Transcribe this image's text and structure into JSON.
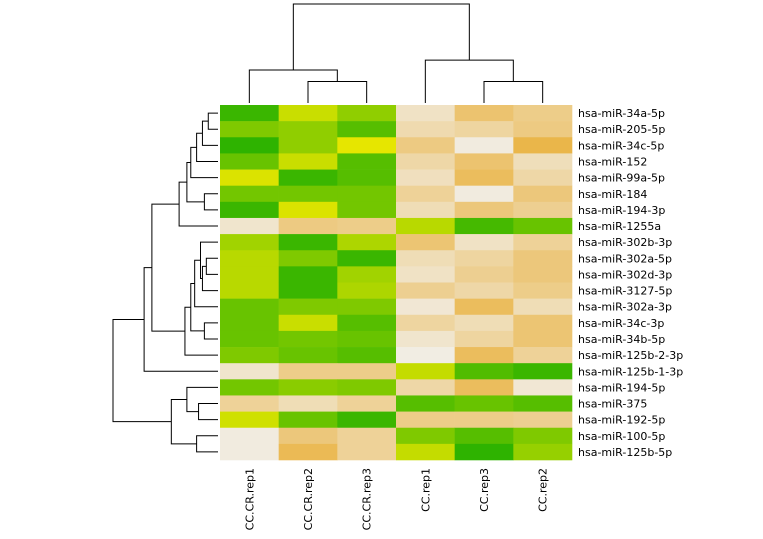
{
  "chart_data": {
    "type": "heatmap",
    "title": "",
    "columns": [
      "CC.CR.rep1",
      "CC.CR.rep2",
      "CC.CR.rep3",
      "CC.rep1",
      "CC.rep3",
      "CC.rep2"
    ],
    "rows": [
      "hsa-miR-34a-5p",
      "hsa-miR-205-5p",
      "hsa-miR-34c-5p",
      "hsa-miR-152",
      "hsa-miR-99a-5p",
      "hsa-miR-184",
      "hsa-miR-194-3p",
      "hsa-miR-1255a",
      "hsa-miR-302b-3p",
      "hsa-miR-302a-5p",
      "hsa-miR-302d-3p",
      "hsa-miR-3127-5p",
      "hsa-miR-302a-3p",
      "hsa-miR-34c-3p",
      "hsa-miR-34b-5p",
      "hsa-miR-125b-2-3p",
      "hsa-miR-125b-1-3p",
      "hsa-miR-194-5p",
      "hsa-miR-375",
      "hsa-miR-192-5p",
      "hsa-miR-100-5p",
      "hsa-miR-125b-5p"
    ],
    "color_scale": {
      "low": "#00a600",
      "mid": "#e6e600",
      "high_start": "#eab64a",
      "high": "#f2f2f2",
      "note": "terrain-like palette: green (low) - yellow - orange - near white (high); values are relative scale 0-100"
    },
    "values": [
      [
        10,
        35,
        25,
        88,
        65,
        72
      ],
      [
        22,
        25,
        15,
        82,
        78,
        70
      ],
      [
        8,
        25,
        40,
        70,
        95,
        55
      ],
      [
        18,
        35,
        15,
        80,
        65,
        85
      ],
      [
        38,
        10,
        15,
        86,
        60,
        80
      ],
      [
        20,
        20,
        20,
        76,
        95,
        68
      ],
      [
        10,
        38,
        20,
        84,
        68,
        74
      ],
      [
        90,
        70,
        72,
        32,
        12,
        18
      ],
      [
        28,
        10,
        30,
        66,
        88,
        76
      ],
      [
        32,
        22,
        10,
        84,
        78,
        68
      ],
      [
        32,
        10,
        28,
        88,
        74,
        68
      ],
      [
        32,
        10,
        30,
        74,
        80,
        72
      ],
      [
        18,
        22,
        22,
        92,
        60,
        84
      ],
      [
        18,
        35,
        15,
        78,
        84,
        66
      ],
      [
        18,
        20,
        18,
        90,
        78,
        66
      ],
      [
        22,
        18,
        15,
        96,
        60,
        76
      ],
      [
        90,
        72,
        72,
        34,
        14,
        10
      ],
      [
        20,
        24,
        22,
        80,
        60,
        92
      ],
      [
        76,
        84,
        76,
        15,
        18,
        15
      ],
      [
        36,
        18,
        10,
        72,
        72,
        74
      ],
      [
        95,
        68,
        76,
        22,
        15,
        22
      ],
      [
        95,
        58,
        76,
        34,
        8,
        26
      ]
    ],
    "row_dendrogram": [
      [
        0,
        1
      ],
      [
        22,
        2
      ],
      [
        23,
        3
      ],
      [
        24,
        4
      ],
      [
        5,
        6
      ],
      [
        25,
        26
      ],
      [
        27,
        7
      ],
      [
        9,
        10
      ],
      [
        29,
        11
      ],
      [
        8,
        30
      ],
      [
        31,
        12
      ],
      [
        13,
        14
      ],
      [
        32,
        33
      ],
      [
        34,
        15
      ],
      [
        28,
        35
      ],
      [
        36,
        16
      ],
      [
        18,
        19
      ],
      [
        17,
        38
      ],
      [
        20,
        21
      ],
      [
        39,
        40
      ],
      [
        37,
        41
      ]
    ],
    "column_dendrogram": [
      [
        1,
        2
      ],
      [
        6,
        0
      ],
      [
        4,
        5
      ],
      [
        8,
        3
      ],
      [
        7,
        9
      ]
    ],
    "legend": "none",
    "xlabel": "",
    "ylabel": ""
  }
}
